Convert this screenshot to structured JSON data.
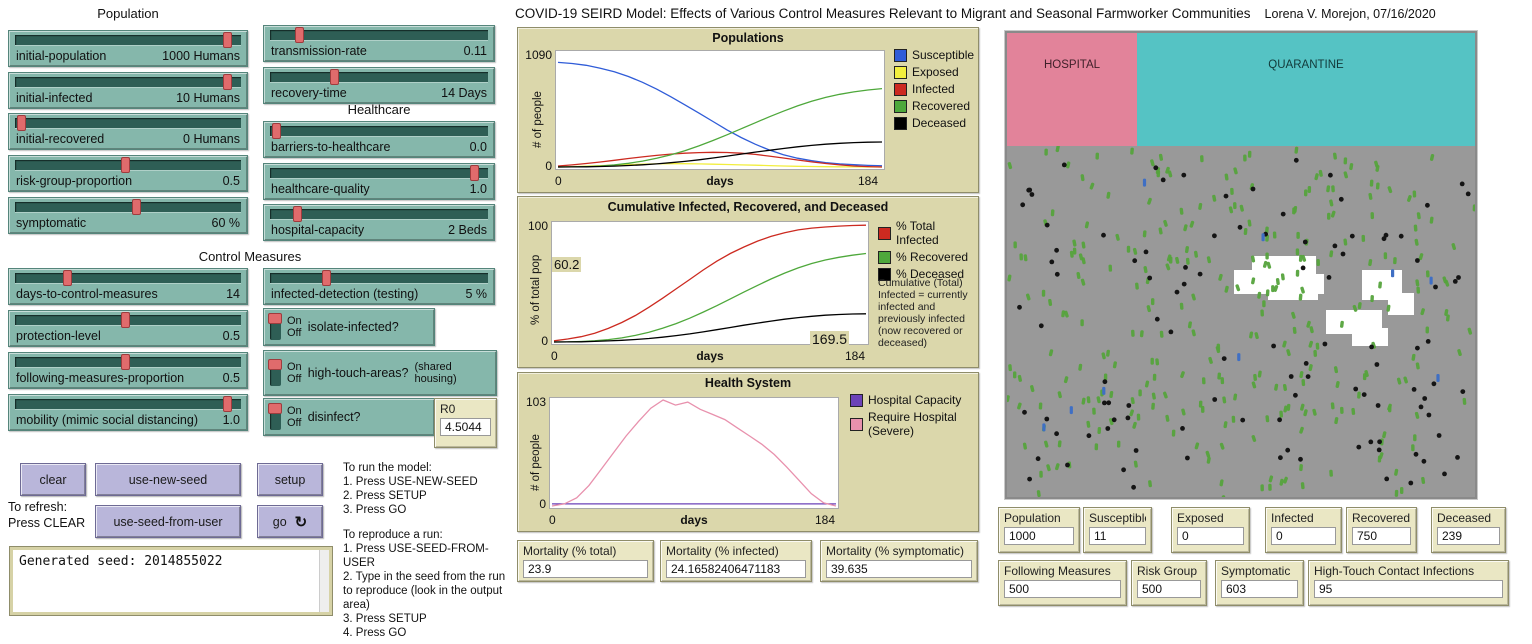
{
  "title": {
    "text": "COVID-19 SEIRD Model: Effects of Various Control Measures Relevant to Migrant and Seasonal Farmworker Communities",
    "author": "Lorena V. Morejon, 07/16/2020"
  },
  "sections": {
    "population": "Population",
    "healthcare": "Healthcare",
    "control_measures": "Control Measures"
  },
  "sliders": [
    {
      "label": "initial-population",
      "value": "1000 Humans",
      "fraction": 0.97
    },
    {
      "label": "initial-infected",
      "value": "10 Humans",
      "fraction": 0.97
    },
    {
      "label": "initial-recovered",
      "value": "0 Humans",
      "fraction": 0.02
    },
    {
      "label": "risk-group-proportion",
      "value": "0.5",
      "fraction": 0.5
    },
    {
      "label": "symptomatic",
      "value": "60 %",
      "fraction": 0.55
    },
    {
      "label": "transmission-rate",
      "value": "0.11",
      "fraction": 0.13
    },
    {
      "label": "recovery-time",
      "value": "14 Days",
      "fraction": 0.3
    },
    {
      "label": "barriers-to-healthcare",
      "value": "0.0",
      "fraction": 0.02
    },
    {
      "label": "healthcare-quality",
      "value": "1.0",
      "fraction": 0.97
    },
    {
      "label": "hospital-capacity",
      "value": "2 Beds",
      "fraction": 0.12
    },
    {
      "label": "days-to-control-measures",
      "value": "14",
      "fraction": 0.23
    },
    {
      "label": "protection-level",
      "value": "0.5",
      "fraction": 0.5
    },
    {
      "label": "following-measures-proportion",
      "value": "0.5",
      "fraction": 0.5
    },
    {
      "label": "mobility (mimic social distancing)",
      "value": "1.0",
      "fraction": 0.97
    },
    {
      "label": "infected-detection (testing)",
      "value": "5 %",
      "fraction": 0.26
    }
  ],
  "switches": [
    {
      "on_label": "On",
      "off_label": "Off",
      "label": "isolate-infected?",
      "extra": "",
      "state": "On"
    },
    {
      "on_label": "On",
      "off_label": "Off",
      "label": "high-touch-areas?",
      "extra": "(shared\nhousing)",
      "state": "On"
    },
    {
      "on_label": "On",
      "off_label": "Off",
      "label": "disinfect?",
      "extra": "",
      "state": "On"
    }
  ],
  "r0_monitor": {
    "label": "R0",
    "value": "4.5044"
  },
  "buttons": {
    "clear": "clear",
    "use_new_seed": "use-new-seed",
    "setup": "setup",
    "use_seed_from_user": "use-seed-from-user",
    "go": "go"
  },
  "notes": {
    "refresh": "To refresh:\nPress CLEAR",
    "run": "To run the model:\n1. Press USE-NEW-SEED\n2. Press SETUP\n3. Press GO",
    "reproduce": "To reproduce a run:\n1. Press USE-SEED-FROM-USER\n2. Type in the seed from the run to reproduce (look in the output area)\n3. Press SETUP\n4. Press GO"
  },
  "output": {
    "text": "Generated seed: 2014855022"
  },
  "chart_data": [
    {
      "type": "line",
      "title": "Populations",
      "xlabel": "days",
      "ylabel": "# of people",
      "xlim": [
        0,
        184
      ],
      "ylim": [
        0,
        1090
      ],
      "yticks": [
        "1090",
        "0"
      ],
      "xticks": [
        "0",
        "184"
      ],
      "legend_position": "right",
      "x": [
        0,
        8,
        16,
        24,
        32,
        40,
        48,
        56,
        64,
        72,
        80,
        88,
        96,
        104,
        112,
        120,
        128,
        136,
        144,
        152,
        160,
        168,
        176,
        184
      ],
      "series": [
        {
          "name": "Susceptible",
          "color": "#2f5cd8",
          "values": [
            1000,
            990,
            972,
            945,
            910,
            865,
            810,
            745,
            672,
            595,
            515,
            435,
            355,
            282,
            218,
            163,
            118,
            84,
            60,
            42,
            30,
            22,
            15,
            11
          ]
        },
        {
          "name": "Exposed",
          "color": "#f2ee3e",
          "values": [
            0,
            4,
            8,
            13,
            18,
            23,
            27,
            30,
            32,
            32,
            30,
            27,
            24,
            20,
            17,
            13,
            10,
            7,
            5,
            3,
            2,
            1,
            0,
            0
          ]
        },
        {
          "name": "Infected",
          "color": "#cc2a20",
          "values": [
            10,
            20,
            33,
            48,
            64,
            81,
            97,
            111,
            123,
            132,
            138,
            141,
            139,
            132,
            120,
            104,
            86,
            67,
            49,
            33,
            20,
            10,
            4,
            0
          ]
        },
        {
          "name": "Recovered",
          "color": "#4ea83b",
          "values": [
            0,
            1,
            4,
            10,
            20,
            35,
            56,
            83,
            116,
            156,
            202,
            253,
            308,
            365,
            423,
            480,
            534,
            584,
            628,
            665,
            695,
            718,
            736,
            750
          ]
        },
        {
          "name": "Deceased",
          "color": "#000000",
          "values": [
            0,
            1,
            2,
            5,
            9,
            14,
            21,
            30,
            41,
            54,
            69,
            86,
            104,
            123,
            142,
            160,
            177,
            193,
            207,
            218,
            227,
            233,
            237,
            239
          ]
        }
      ]
    },
    {
      "type": "line",
      "title": "Cumulative Infected, Recovered, and Deceased",
      "xlabel": "days",
      "ylabel": "% of total pop",
      "xlim": [
        0,
        184
      ],
      "ylim": [
        0,
        100
      ],
      "yticks": [
        "100",
        "0"
      ],
      "xticks": [
        "0",
        "184"
      ],
      "legend_position": "right",
      "annotations": [
        {
          "text": "60.2"
        },
        {
          "text": "169.5"
        }
      ],
      "legend_note": "Cumulative (Total)\nInfected = currently\ninfected and\npreviously infected\n(now recovered or\ndeceased)",
      "x": [
        0,
        8,
        16,
        24,
        32,
        40,
        48,
        56,
        64,
        72,
        80,
        88,
        96,
        104,
        112,
        120,
        128,
        136,
        144,
        152,
        160,
        168,
        176,
        184
      ],
      "series": [
        {
          "name": "% Total Infected",
          "color": "#cc2a20",
          "values": [
            1,
            2.5,
            4.5,
            7.5,
            11.5,
            16.5,
            22.5,
            29.5,
            37,
            45,
            53,
            61,
            68.5,
            75,
            80.5,
            85.5,
            89.5,
            92.5,
            95,
            96.5,
            97.5,
            98.2,
            98.7,
            99
          ]
        },
        {
          "name": "% Recovered",
          "color": "#4ea83b",
          "values": [
            0,
            0.1,
            0.4,
            1,
            2,
            3.5,
            5.6,
            8.3,
            11.6,
            15.6,
            20.2,
            25.3,
            30.8,
            36.5,
            42.3,
            48,
            53.4,
            58.4,
            62.8,
            66.5,
            69.5,
            71.8,
            73.6,
            75
          ]
        },
        {
          "name": "% Deceased",
          "color": "#000000",
          "values": [
            0,
            0.1,
            0.2,
            0.5,
            0.9,
            1.4,
            2.1,
            3,
            4.1,
            5.4,
            6.9,
            8.6,
            10.4,
            12.3,
            14.2,
            16,
            17.7,
            19.3,
            20.7,
            21.8,
            22.7,
            23.3,
            23.7,
            23.9
          ]
        }
      ]
    },
    {
      "type": "line",
      "title": "Health System",
      "xlabel": "days",
      "ylabel": "# of people",
      "xlim": [
        0,
        184
      ],
      "ylim": [
        0,
        103
      ],
      "yticks": [
        "103",
        "0"
      ],
      "xticks": [
        "0",
        "184"
      ],
      "legend_position": "right",
      "x": [
        0,
        8,
        16,
        24,
        32,
        40,
        48,
        56,
        64,
        72,
        80,
        88,
        96,
        104,
        112,
        120,
        128,
        136,
        144,
        152,
        160,
        168,
        176,
        184
      ],
      "series": [
        {
          "name": "Hospital Capacity",
          "color": "#6b42b8",
          "values": [
            2,
            2,
            2,
            2,
            2,
            2,
            2,
            2,
            2,
            2,
            2,
            2,
            2,
            2,
            2,
            2,
            2,
            2,
            2,
            2,
            2,
            2,
            2,
            2
          ]
        },
        {
          "name": "Require Hospital (Severe)",
          "color": "#e891ad",
          "values": [
            0,
            2,
            8,
            20,
            36,
            52,
            68,
            82,
            95,
            103,
            98,
            101,
            94,
            89,
            84,
            76,
            68,
            60,
            50,
            38,
            25,
            12,
            3,
            0
          ]
        }
      ]
    }
  ],
  "mortality_monitors": [
    {
      "label": "Mortality (% total)",
      "value": "23.9"
    },
    {
      "label": "Mortality (% infected)",
      "value": "24.16582406471183"
    },
    {
      "label": "Mortality (% symptomatic)",
      "value": "39.635"
    }
  ],
  "world": {
    "hospital_label": "HOSPITAL",
    "quarantine_label": "QUARANTINE",
    "colors": {
      "hospital": "#e2839a",
      "quarantine": "#55c3c4",
      "field": "#999999",
      "recovered_agent": "#55a33c",
      "deceased_agent": "#141414",
      "susceptible_agent": "#3f6fc4",
      "housing": "#ffffff"
    },
    "agent_counts": {
      "recovered_green": 330,
      "deceased_black": 105,
      "susceptible_blue": 9
    },
    "housing_blocks": [
      [
        245,
        110,
        64,
        22
      ],
      [
        227,
        124,
        46,
        24
      ],
      [
        261,
        132,
        50,
        22
      ],
      [
        299,
        128,
        18,
        20
      ],
      [
        355,
        124,
        40,
        30
      ],
      [
        381,
        147,
        26,
        22
      ],
      [
        319,
        164,
        56,
        24
      ],
      [
        345,
        182,
        36,
        18
      ]
    ]
  },
  "world_monitors": {
    "row1": [
      {
        "label": "Population",
        "value": "1000"
      },
      {
        "label": "Susceptible",
        "value": "11"
      },
      {
        "label": "Exposed",
        "value": "0"
      },
      {
        "label": "Infected",
        "value": "0"
      },
      {
        "label": "Recovered",
        "value": "750"
      },
      {
        "label": "Deceased",
        "value": "239"
      }
    ],
    "row2": [
      {
        "label": "Following Measures",
        "value": "500"
      },
      {
        "label": "Risk Group",
        "value": "500"
      },
      {
        "label": "Symptomatic",
        "value": "603"
      },
      {
        "label": "High-Touch Contact Infections",
        "value": "95"
      }
    ]
  }
}
